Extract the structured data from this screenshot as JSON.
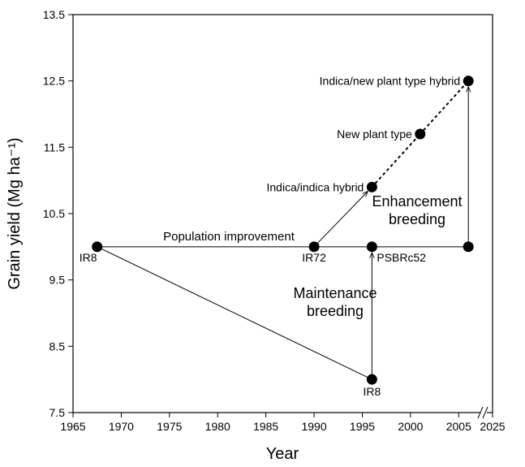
{
  "chart_data": {
    "type": "scatter",
    "x_label": "Year",
    "y_label": "Grain yield (Mg ha⁻¹)",
    "x": [
      1967.5,
      1990,
      1996,
      2006,
      1996,
      1996,
      2001,
      2006
    ],
    "values": [
      10,
      10,
      10,
      10,
      8,
      10.9,
      11.7,
      12.5
    ],
    "labels": [
      "IR8",
      "IR72",
      "PSBRc52",
      null,
      "IR8",
      "Indica/indica hybrid",
      "New plant type",
      "Indica/new plant type hybrid"
    ],
    "color": "#000000",
    "xlim": [
      1965,
      2025
    ],
    "xticks": [
      1965,
      1970,
      1975,
      1980,
      1985,
      1990,
      1995,
      2000,
      2005,
      2025
    ],
    "ylim": [
      7.5,
      13.5
    ],
    "yticks": [
      7.5,
      8.5,
      9.5,
      10.5,
      11.5,
      12.5,
      13.5
    ],
    "grid": false,
    "annotations": [
      {
        "lines": [
          "Population improvement"
        ]
      },
      {
        "lines": [
          "Enhancement",
          "breeding"
        ]
      },
      {
        "lines": [
          "Maintenance",
          "breeding"
        ]
      }
    ]
  }
}
